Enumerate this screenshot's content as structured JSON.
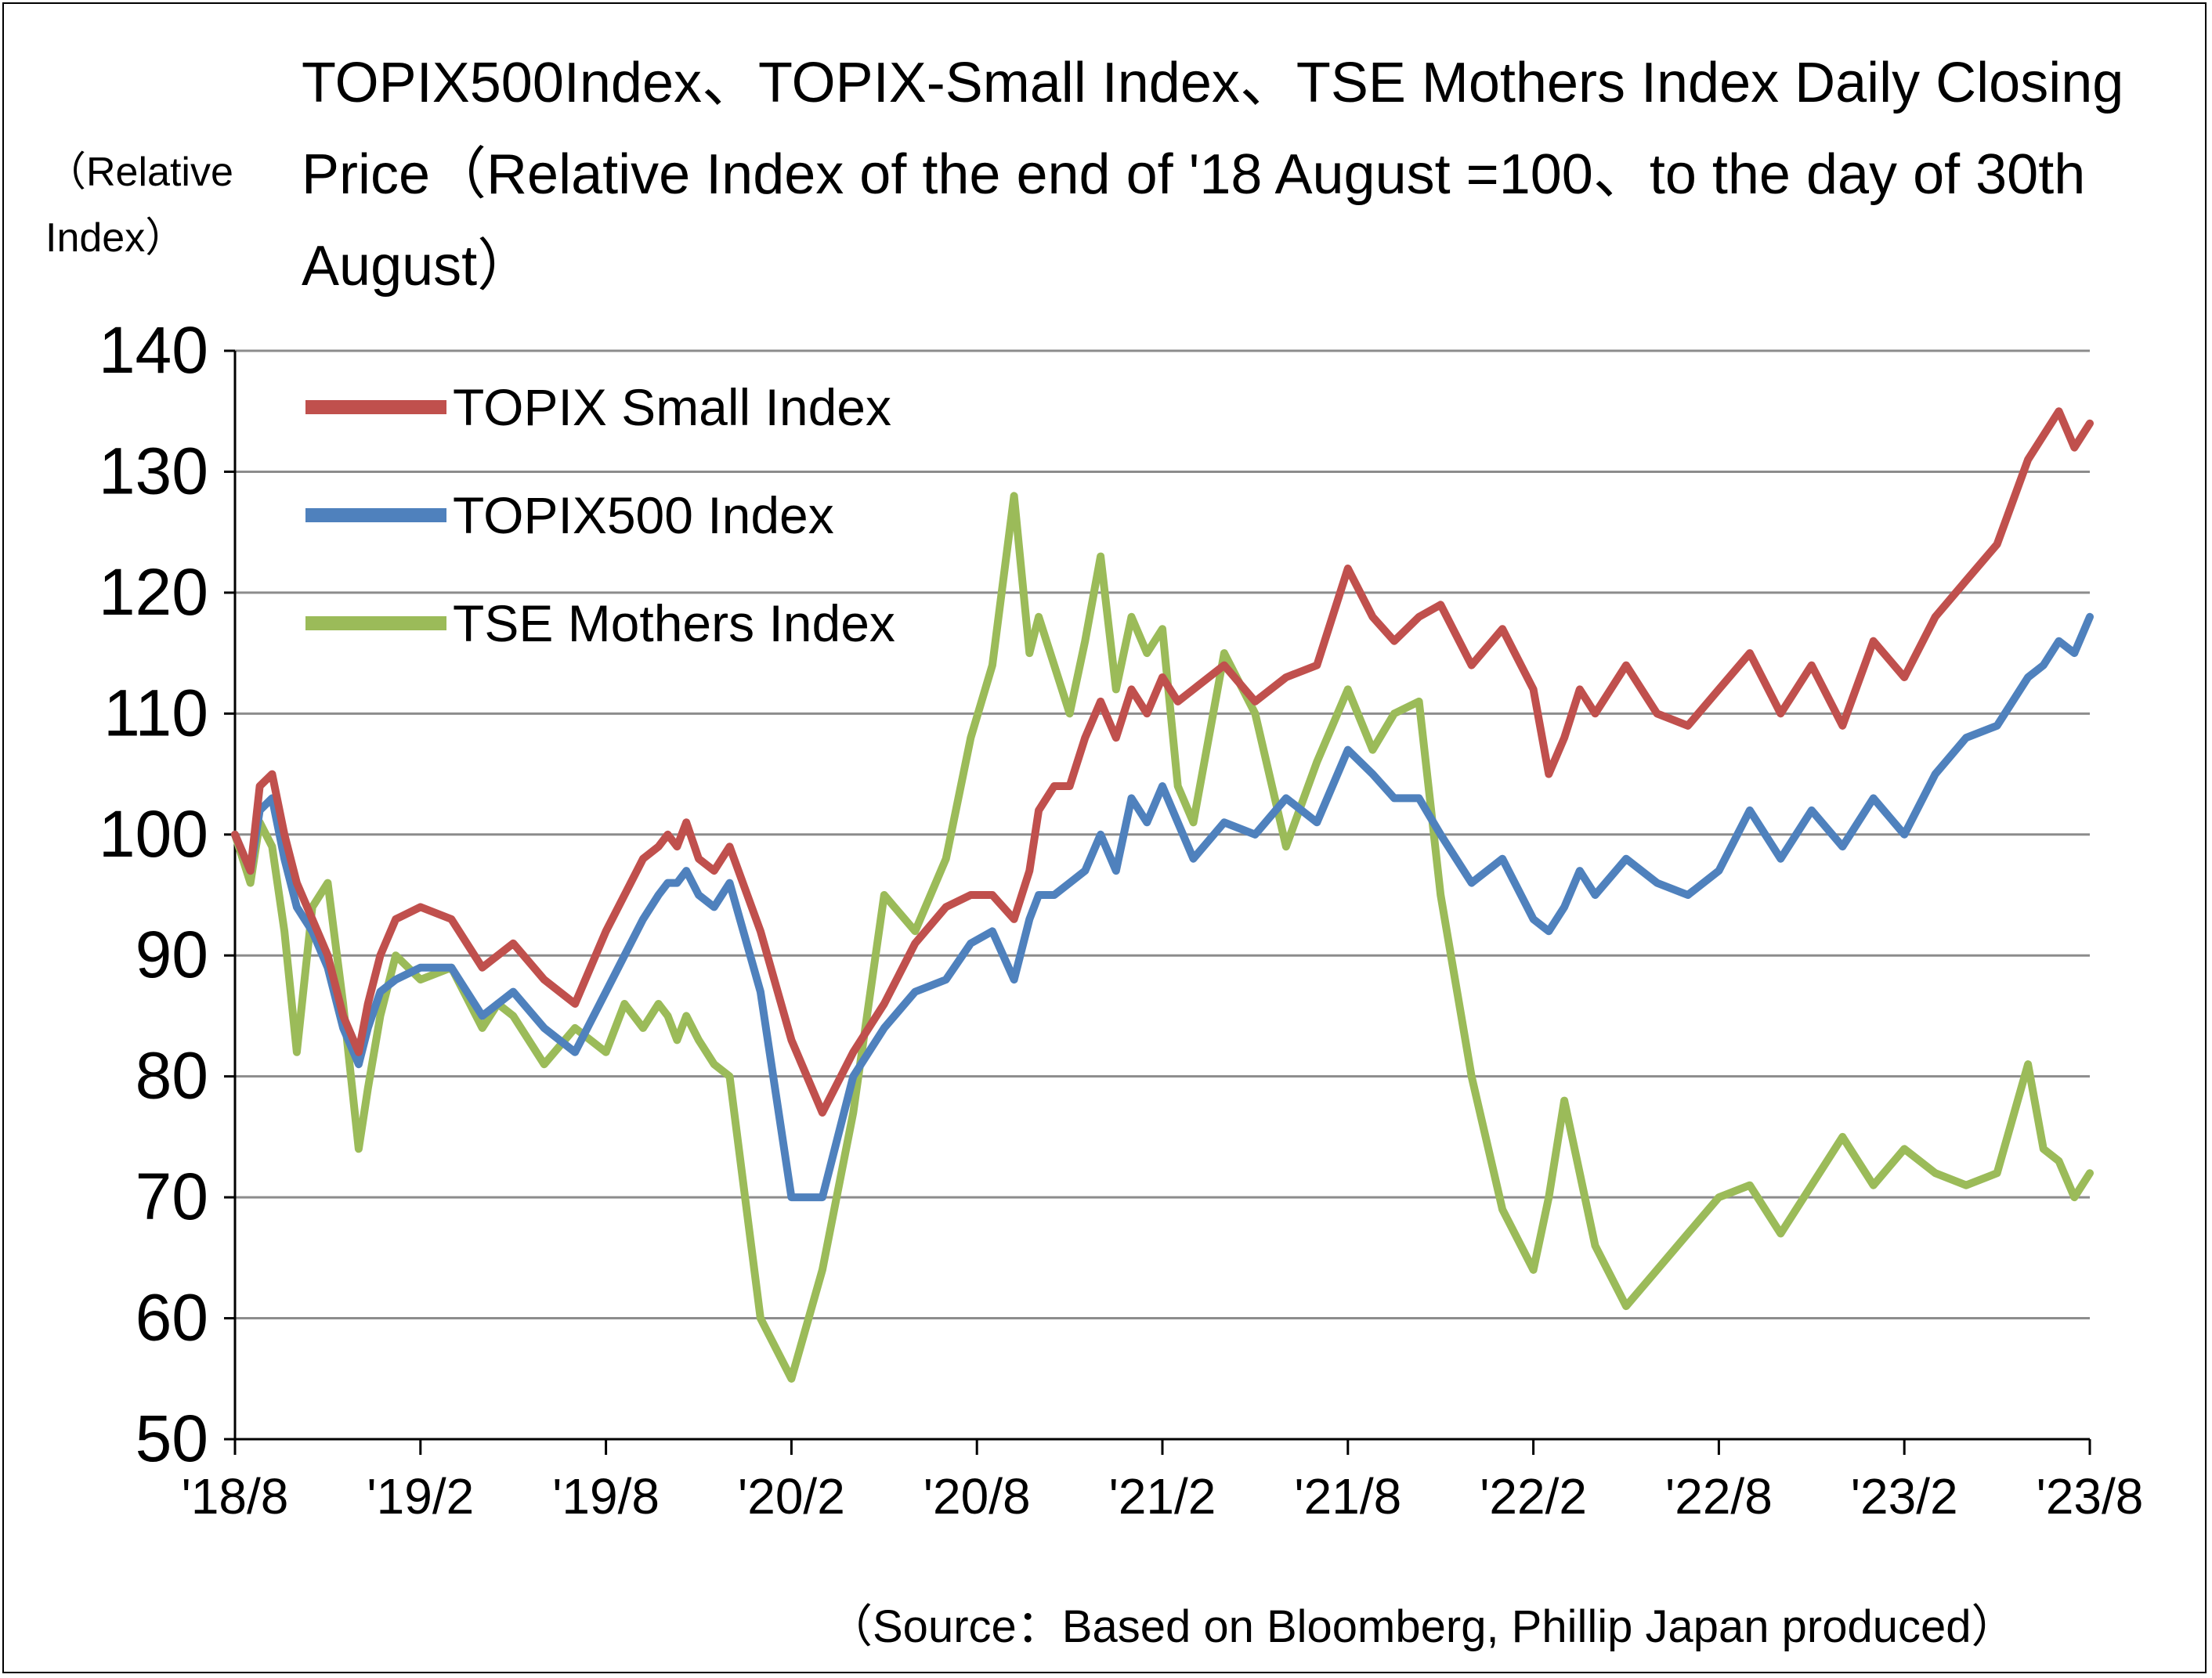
{
  "chart_data": {
    "type": "line",
    "title": "TOPIX500Index、TOPIX-Small Index、TSE Mothers Index Daily Closing Price（Relative Index of the end of '18 August =100、to the day of 30th August）",
    "ylabel": "（Relative Index）",
    "xlabel": "",
    "source": "（Source：Based on Bloomberg, Phillip Japan  produced）",
    "ylim": [
      50,
      140
    ],
    "yticks": [
      "140",
      "130",
      "120",
      "110",
      "100",
      "90",
      "80",
      "70",
      "60",
      "50"
    ],
    "xticks": [
      "'18/8",
      "'19/2",
      "'19/8",
      "'20/2",
      "'20/8",
      "'21/2",
      "'21/8",
      "'22/2",
      "'22/8",
      "'23/2",
      "'23/8"
    ],
    "xlim_months": [
      0,
      60
    ],
    "grid": true,
    "legend_position": "top-left",
    "series": [
      {
        "name": "TOPIX Small Index",
        "color": "#c0504d",
        "x": [
          0,
          0.5,
          0.8,
          1.2,
          1.6,
          2.0,
          2.5,
          3.0,
          3.5,
          4.0,
          4.3,
          4.7,
          5.2,
          6.0,
          7.0,
          8.0,
          8.5,
          9.0,
          10.0,
          11.0,
          12.0,
          12.6,
          13.2,
          13.7,
          14.0,
          14.3,
          14.6,
          15.0,
          15.5,
          16.0,
          17.0,
          18.0,
          19.0,
          20.0,
          21.0,
          22.0,
          23.0,
          23.8,
          24.5,
          25.2,
          25.7,
          26.0,
          26.5,
          27.0,
          27.5,
          28.0,
          28.5,
          29.0,
          29.5,
          30.0,
          30.5,
          31.0,
          32.0,
          33.0,
          34.0,
          35.0,
          36.0,
          36.8,
          37.5,
          38.3,
          39.0,
          40.0,
          41.0,
          42.0,
          42.5,
          43.0,
          43.5,
          44.0,
          45.0,
          46.0,
          47.0,
          48.0,
          49.0,
          50.0,
          51.0,
          52.0,
          53.0,
          54.0,
          55.0,
          56.0,
          57.0,
          58.0,
          58.5,
          59.0,
          59.5,
          60.0
        ],
        "y": [
          100,
          97,
          104,
          105,
          100,
          96,
          93,
          90,
          85,
          82,
          86,
          90,
          93,
          94,
          93,
          89,
          90,
          91,
          88,
          86,
          92,
          95,
          98,
          99,
          100,
          99,
          101,
          98,
          97,
          99,
          92,
          83,
          77,
          82,
          86,
          91,
          94,
          95,
          95,
          93,
          97,
          102,
          104,
          104,
          108,
          111,
          108,
          112,
          110,
          113,
          111,
          112,
          114,
          111,
          113,
          114,
          122,
          118,
          116,
          118,
          119,
          114,
          117,
          112,
          105,
          108,
          112,
          110,
          114,
          110,
          109,
          112,
          115,
          110,
          114,
          109,
          116,
          113,
          118,
          121,
          124,
          131,
          133,
          135,
          132,
          134
        ]
      },
      {
        "name": "TOPIX500 Index",
        "color": "#4f81bd",
        "x": [
          0,
          0.5,
          0.8,
          1.2,
          1.6,
          2.0,
          2.5,
          3.0,
          3.5,
          4.0,
          4.3,
          4.7,
          5.2,
          6.0,
          7.0,
          8.0,
          8.5,
          9.0,
          10.0,
          11.0,
          12.0,
          12.6,
          13.2,
          13.7,
          14.0,
          14.3,
          14.6,
          15.0,
          15.5,
          16.0,
          17.0,
          18.0,
          19.0,
          20.0,
          21.0,
          22.0,
          23.0,
          23.8,
          24.5,
          25.2,
          25.7,
          26.0,
          26.5,
          27.0,
          27.5,
          28.0,
          28.5,
          29.0,
          29.5,
          30.0,
          30.5,
          31.0,
          32.0,
          33.0,
          34.0,
          35.0,
          36.0,
          36.8,
          37.5,
          38.3,
          39.0,
          40.0,
          41.0,
          42.0,
          42.5,
          43.0,
          43.5,
          44.0,
          45.0,
          46.0,
          47.0,
          48.0,
          49.0,
          50.0,
          51.0,
          52.0,
          53.0,
          54.0,
          55.0,
          56.0,
          57.0,
          58.0,
          58.5,
          59.0,
          59.5,
          60.0
        ],
        "y": [
          100,
          97,
          102,
          103,
          98,
          94,
          92,
          89,
          84,
          81,
          84,
          87,
          88,
          89,
          89,
          85,
          86,
          87,
          84,
          82,
          87,
          90,
          93,
          95,
          96,
          96,
          97,
          95,
          94,
          96,
          87,
          70,
          70,
          80,
          84,
          87,
          88,
          91,
          92,
          88,
          93,
          95,
          95,
          96,
          97,
          100,
          97,
          103,
          101,
          104,
          101,
          98,
          101,
          100,
          103,
          101,
          107,
          105,
          103,
          103,
          100,
          96,
          98,
          93,
          92,
          94,
          97,
          95,
          98,
          96,
          95,
          97,
          102,
          98,
          102,
          99,
          103,
          100,
          105,
          108,
          109,
          113,
          114,
          116,
          115,
          118
        ]
      },
      {
        "name": "TSE Mothers Index",
        "color": "#9bbb59",
        "x": [
          0,
          0.5,
          0.8,
          1.2,
          1.6,
          2.0,
          2.5,
          3.0,
          3.5,
          4.0,
          4.3,
          4.7,
          5.2,
          6.0,
          7.0,
          8.0,
          8.5,
          9.0,
          10.0,
          11.0,
          12.0,
          12.6,
          13.2,
          13.7,
          14.0,
          14.3,
          14.6,
          15.0,
          15.5,
          16.0,
          17.0,
          18.0,
          19.0,
          20.0,
          21.0,
          22.0,
          23.0,
          23.8,
          24.5,
          25.2,
          25.7,
          26.0,
          26.5,
          27.0,
          27.5,
          28.0,
          28.5,
          29.0,
          29.5,
          30.0,
          30.5,
          31.0,
          32.0,
          33.0,
          34.0,
          35.0,
          36.0,
          36.8,
          37.5,
          38.3,
          39.0,
          40.0,
          41.0,
          42.0,
          42.5,
          43.0,
          43.5,
          44.0,
          45.0,
          46.0,
          47.0,
          48.0,
          49.0,
          50.0,
          51.0,
          52.0,
          53.0,
          54.0,
          55.0,
          56.0,
          57.0,
          58.0,
          58.5,
          59.0,
          59.5,
          60.0
        ],
        "y": [
          100,
          96,
          101,
          99,
          92,
          82,
          94,
          96,
          86,
          74,
          79,
          85,
          90,
          88,
          89,
          84,
          86,
          85,
          81,
          84,
          82,
          86,
          84,
          86,
          85,
          83,
          85,
          83,
          81,
          80,
          60,
          55,
          64,
          77,
          95,
          92,
          98,
          108,
          114,
          128,
          115,
          118,
          114,
          110,
          116,
          123,
          112,
          118,
          115,
          117,
          104,
          101,
          115,
          110,
          99,
          106,
          112,
          107,
          110,
          111,
          95,
          80,
          69,
          64,
          70,
          78,
          72,
          66,
          61,
          64,
          67,
          70,
          71,
          67,
          71,
          75,
          71,
          74,
          72,
          71,
          72,
          81,
          74,
          73,
          70,
          72
        ]
      }
    ]
  }
}
